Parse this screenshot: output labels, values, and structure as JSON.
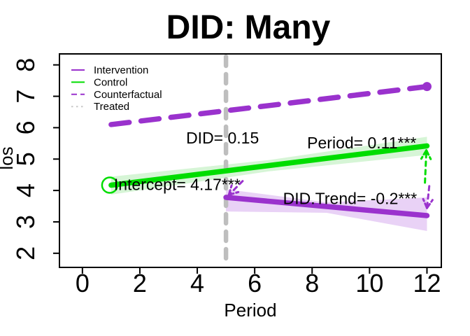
{
  "chart_data": {
    "type": "line",
    "title": "DID: Many",
    "xlabel": "Period",
    "ylabel": "los",
    "xlim": [
      -0.8,
      12.5
    ],
    "ylim": [
      1.55,
      8.35
    ],
    "xticks": [
      0,
      2,
      4,
      6,
      8,
      10,
      12
    ],
    "yticks": [
      2,
      3,
      4,
      5,
      6,
      7,
      8
    ],
    "grid": false,
    "background": "#FFFFFF",
    "frame_color": "#000000",
    "vline": {
      "x": 5,
      "color": "#BEBEBE",
      "style": "dashed"
    },
    "series": [
      {
        "name": "Counterfactual",
        "color": "#9A32CD",
        "style": "dashed",
        "width": 7.5,
        "points": [
          [
            1,
            6.1
          ],
          [
            12,
            7.31
          ]
        ],
        "end_dot": true
      },
      {
        "name": "Control",
        "color": "#00DD00",
        "style": "solid",
        "width": 7.5,
        "points": [
          [
            1,
            4.17
          ],
          [
            12,
            5.42
          ]
        ],
        "band_color": "#D6F5D6",
        "band": [
          [
            1,
            4.44
          ],
          [
            6.5,
            4.97
          ],
          [
            12,
            5.71
          ],
          [
            12,
            5.13
          ],
          [
            6.5,
            4.61
          ],
          [
            1,
            3.87
          ]
        ],
        "start_circle": true
      },
      {
        "name": "Intervention",
        "color": "#9A32CD",
        "style": "solid",
        "width": 7.5,
        "points": [
          [
            5,
            3.78
          ],
          [
            12,
            3.2
          ]
        ],
        "band_color": "#E9D2F6",
        "band": [
          [
            5,
            4.04
          ],
          [
            8.5,
            3.62
          ],
          [
            12,
            3.78
          ],
          [
            12,
            2.71
          ],
          [
            8.5,
            3.29
          ],
          [
            5,
            3.33
          ]
        ]
      }
    ],
    "annotations": [
      {
        "text": "DID= 0.15",
        "x": 4.88,
        "y": 5.68
      },
      {
        "text": "Period= 0.11***",
        "x": 9.73,
        "y": 5.52
      },
      {
        "text": "Intercept= 4.17***",
        "x": 3.3,
        "y": 4.19
      },
      {
        "text": "DID.Trend= -0.2***",
        "x": 9.32,
        "y": 3.75
      }
    ],
    "arrows": [
      {
        "color": "#9A32CD",
        "from": [
          5.58,
          4.3
        ],
        "to": [
          5.1,
          3.86
        ]
      },
      {
        "color": "#00DD00",
        "from": [
          11.93,
          4.25
        ],
        "to": [
          11.98,
          5.28
        ]
      },
      {
        "color": "#9A32CD",
        "from": [
          12.08,
          4.14
        ],
        "to": [
          12.0,
          3.44
        ]
      }
    ],
    "legend": {
      "position": "top-left",
      "entries": [
        {
          "label": "Intervention",
          "color": "#9A32CD",
          "style": "solid"
        },
        {
          "label": "Control",
          "color": "#00DD00",
          "style": "solid"
        },
        {
          "label": "Counterfactual",
          "color": "#9A32CD",
          "style": "dashed"
        },
        {
          "label": "Treated",
          "color": "#C8C8C8",
          "style": "dotted"
        }
      ]
    }
  }
}
